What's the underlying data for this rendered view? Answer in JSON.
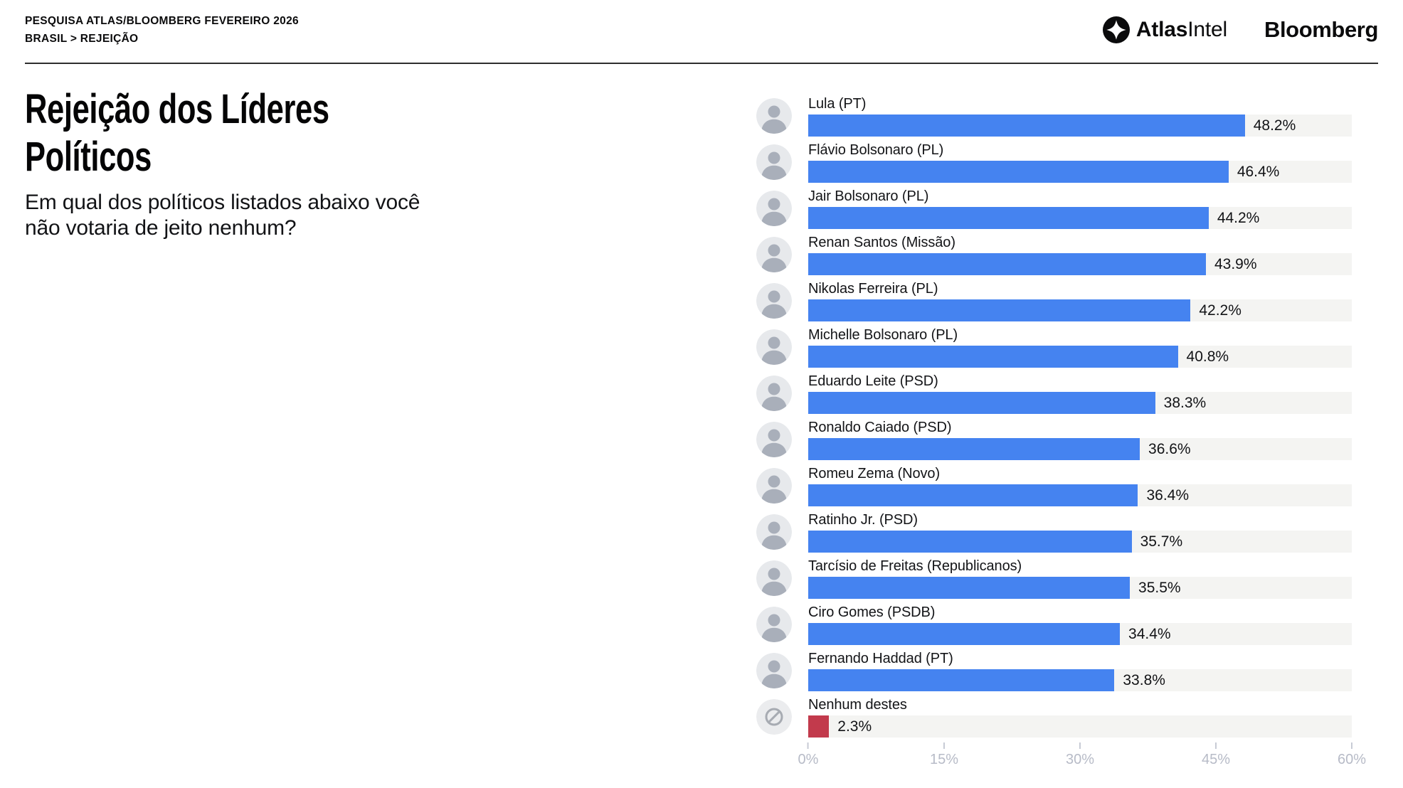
{
  "header": {
    "kicker_line1": "PESQUISA ATLAS/BLOOMBERG FEVEREIRO 2026",
    "kicker_line2": "BRASIL > REJEIÇÃO",
    "brands": {
      "atlas_bold": "Atlas",
      "atlas_light": "Intel",
      "bloomberg": "Bloomberg"
    }
  },
  "intro": {
    "title": "Rejeição dos Líderes Políticos",
    "subtitle": "Em qual dos políticos listados abaixo você não votaria de jeito nenhum?"
  },
  "chart_data": {
    "type": "bar",
    "orientation": "horizontal",
    "title": "Rejeição dos Líderes Políticos",
    "question": "Em qual dos políticos listados abaixo você não votaria de jeito nenhum?",
    "categories": [
      "Lula (PT)",
      "Flávio Bolsonaro (PL)",
      "Jair Bolsonaro (PL)",
      "Renan Santos (Missão)",
      "Nikolas Ferreira (PL)",
      "Michelle Bolsonaro (PL)",
      "Eduardo Leite (PSD)",
      "Ronaldo Caiado (PSD)",
      "Romeu Zema (Novo)",
      "Ratinho Jr. (PSD)",
      "Tarcísio de Freitas (Republicanos)",
      "Ciro Gomes (PSDB)",
      "Fernando Haddad (PT)",
      "Nenhum destes"
    ],
    "values": [
      48.2,
      46.4,
      44.2,
      43.9,
      42.2,
      40.8,
      38.3,
      36.6,
      36.4,
      35.7,
      35.5,
      34.4,
      33.8,
      2.3
    ],
    "value_labels": [
      "48.2%",
      "46.4%",
      "44.2%",
      "43.9%",
      "42.2%",
      "40.8%",
      "38.3%",
      "36.6%",
      "36.4%",
      "35.7%",
      "35.5%",
      "34.4%",
      "33.8%",
      "2.3%"
    ],
    "xlim": [
      0,
      60
    ],
    "x_ticks": [
      "0%",
      "15%",
      "30%",
      "45%",
      "60%"
    ],
    "bar_color": "#4583f0",
    "track_color": "#f4f4f2",
    "none_option_index": 13,
    "none_option_color": "#c23a4c",
    "grid": "off",
    "legend": "none"
  }
}
